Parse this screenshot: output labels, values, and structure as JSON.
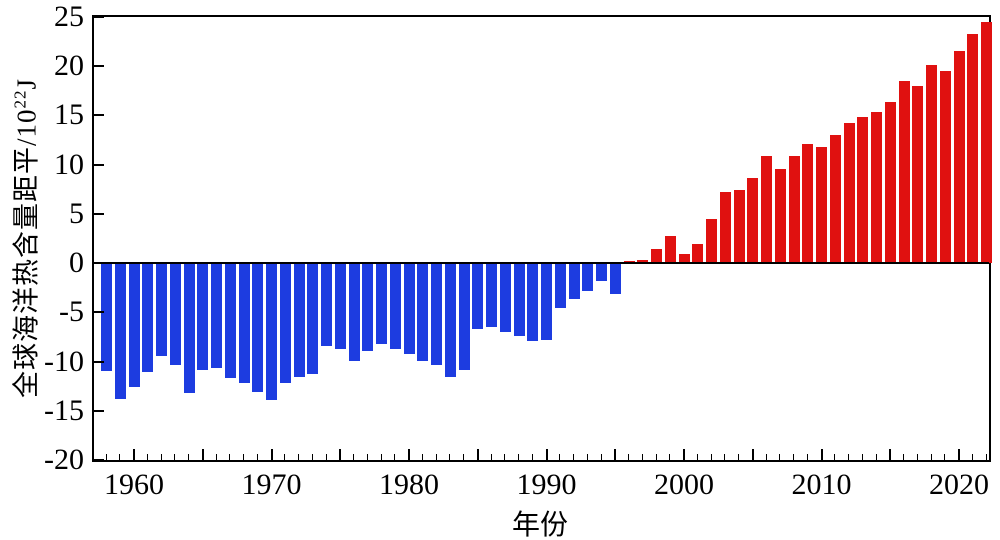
{
  "figure": {
    "y_axis": {
      "title_prefix": "全球海洋热含量距平/10",
      "title_superscript": "22",
      "title_unit": "J",
      "tick_values": [
        25,
        20,
        15,
        10,
        5,
        0,
        -5,
        -10,
        -15,
        -20
      ],
      "min": -20,
      "max": 25
    },
    "x_axis": {
      "title": "年份",
      "decade_labels": [
        "1960",
        "1970",
        "1980",
        "1990",
        "2000",
        "2010",
        "2020"
      ],
      "minor_tick_every_years": 1,
      "major_tick_every_years": 5
    },
    "colors": {
      "positive_bar": "#e01110",
      "negative_bar": "#1d3ce0",
      "axis": "#000000",
      "background": "#ffffff"
    }
  },
  "chart_data": {
    "type": "bar",
    "title": "",
    "xlabel": "年份",
    "ylabel": "全球海洋热含量距平/10^22 J",
    "ylim": [
      -20,
      25
    ],
    "xlim_years": [
      1957,
      2023
    ],
    "legend": "none",
    "grid": false,
    "series_name": "全球海洋热含量距平",
    "x": [
      1958,
      1959,
      1960,
      1961,
      1962,
      1963,
      1964,
      1965,
      1966,
      1967,
      1968,
      1969,
      1970,
      1971,
      1972,
      1973,
      1974,
      1975,
      1976,
      1977,
      1978,
      1979,
      1980,
      1981,
      1982,
      1983,
      1984,
      1985,
      1986,
      1987,
      1988,
      1989,
      1990,
      1991,
      1992,
      1993,
      1994,
      1995,
      1996,
      1997,
      1998,
      1999,
      2000,
      2001,
      2002,
      2003,
      2004,
      2005,
      2006,
      2007,
      2008,
      2009,
      2010,
      2011,
      2012,
      2013,
      2014,
      2015,
      2016,
      2017,
      2018,
      2019,
      2020,
      2021,
      2022
    ],
    "values": [
      -11.0,
      -13.8,
      -12.6,
      -11.1,
      -9.4,
      -10.3,
      -13.2,
      -10.9,
      -10.7,
      -11.7,
      -12.2,
      -13.1,
      -13.9,
      -12.2,
      -11.6,
      -11.3,
      -8.4,
      -8.7,
      -9.9,
      -8.9,
      -8.2,
      -8.7,
      -9.2,
      -9.9,
      -10.3,
      -11.6,
      -10.9,
      -6.7,
      -6.5,
      -7.0,
      -7.4,
      -7.9,
      -7.8,
      -4.6,
      -3.6,
      -2.8,
      -1.8,
      -3.1,
      0.2,
      0.3,
      1.4,
      2.8,
      0.9,
      1.9,
      4.5,
      7.2,
      7.4,
      8.6,
      10.9,
      9.6,
      10.9,
      12.1,
      11.8,
      13.0,
      14.2,
      14.8,
      15.4,
      16.4,
      18.5,
      18.0,
      20.1,
      19.5,
      21.5,
      23.3,
      24.5
    ],
    "color_rule": "negative values blue (#1d3ce0), positive values red (#e01110)"
  }
}
